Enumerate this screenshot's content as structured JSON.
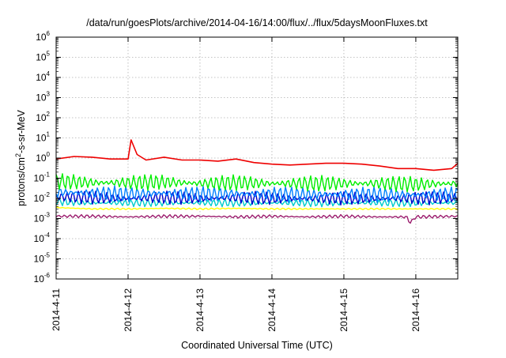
{
  "chart_data": {
    "type": "line",
    "title": "/data/run/goesPlots/archive/2014-04-16/14:00/flux/../flux/5daysMoonFluxes.txt",
    "xlabel": "Coordinated Universal Time (UTC)",
    "ylabel": {
      "prefix": "protons/cm",
      "sup": "2",
      "suffix": "-s-sr-MeV"
    },
    "x_type": "date",
    "xlim": [
      "2014-04-11",
      "2014-04-16 14:00"
    ],
    "x_ticks": [
      "2014-4-11",
      "2014-4-12",
      "2014-4-13",
      "2014-4-14",
      "2014-4-15",
      "2014-4-16"
    ],
    "y_scale": "log",
    "ylim": [
      1e-06,
      1000000.0
    ],
    "y_ticks": [
      {
        "base": "10",
        "exp": "6"
      },
      {
        "base": "10",
        "exp": "5"
      },
      {
        "base": "10",
        "exp": "4"
      },
      {
        "base": "10",
        "exp": "3"
      },
      {
        "base": "10",
        "exp": "2"
      },
      {
        "base": "10",
        "exp": "1"
      },
      {
        "base": "10",
        "exp": "0"
      },
      {
        "base": "10",
        "exp": "-1"
      },
      {
        "base": "10",
        "exp": "-2"
      },
      {
        "base": "10",
        "exp": "-3"
      },
      {
        "base": "10",
        "exp": "-4"
      },
      {
        "base": "10",
        "exp": "-5"
      },
      {
        "base": "10",
        "exp": "-6"
      }
    ],
    "grid": true,
    "legend": "none",
    "series": [
      {
        "color": "#9b1d6e",
        "x": [
          "2014-04-11",
          "2014-04-11 12:00",
          "2014-04-12",
          "2014-04-12 12:00",
          "2014-04-13",
          "2014-04-13 12:00",
          "2014-04-14",
          "2014-04-14 12:00",
          "2014-04-15",
          "2014-04-15 12:00",
          "2014-04-15 21:00",
          "2014-04-15 22:00",
          "2014-04-16",
          "2014-04-16 14:00"
        ],
        "y": [
          0.0013,
          0.0013,
          0.0012,
          0.0013,
          0.0013,
          0.0012,
          0.0013,
          0.0012,
          0.0013,
          0.0012,
          0.0012,
          0.0006,
          0.0012,
          0.0013
        ]
      },
      {
        "color": "#ffff00",
        "x": [
          "2014-04-11",
          "2014-04-11 12:00",
          "2014-04-12",
          "2014-04-12 12:00",
          "2014-04-13",
          "2014-04-13 12:00",
          "2014-04-14",
          "2014-04-14 12:00",
          "2014-04-15",
          "2014-04-15 12:00",
          "2014-04-16",
          "2014-04-16 14:00"
        ],
        "y": [
          0.0035,
          0.003,
          0.003,
          0.0032,
          0.003,
          0.0032,
          0.003,
          0.003,
          0.003,
          0.003,
          0.003,
          0.003
        ]
      },
      {
        "color": "#00cccc",
        "x": [
          "2014-04-11",
          "2014-04-11 12:00",
          "2014-04-12",
          "2014-04-12 12:00",
          "2014-04-13",
          "2014-04-13 12:00",
          "2014-04-14",
          "2014-04-14 12:00",
          "2014-04-15",
          "2014-04-15 12:00",
          "2014-04-16",
          "2014-04-16 14:00"
        ],
        "y": [
          0.007,
          0.006,
          0.006,
          0.006,
          0.006,
          0.006,
          0.006,
          0.006,
          0.006,
          0.006,
          0.006,
          0.006
        ]
      },
      {
        "color": "#0000cc",
        "x": [
          "2014-04-11",
          "2014-04-11 12:00",
          "2014-04-12",
          "2014-04-12 12:00",
          "2014-04-13",
          "2014-04-13 12:00",
          "2014-04-14",
          "2014-04-14 12:00",
          "2014-04-15",
          "2014-04-15 12:00",
          "2014-04-16",
          "2014-04-16 14:00"
        ],
        "y": [
          0.012,
          0.011,
          0.01,
          0.011,
          0.01,
          0.011,
          0.01,
          0.01,
          0.01,
          0.01,
          0.01,
          0.011
        ]
      },
      {
        "color": "#0080ff",
        "x": [
          "2014-04-11",
          "2014-04-11 12:00",
          "2014-04-12",
          "2014-04-12 12:00",
          "2014-04-13",
          "2014-04-13 12:00",
          "2014-04-14",
          "2014-04-14 12:00",
          "2014-04-15",
          "2014-04-15 12:00",
          "2014-04-16",
          "2014-04-16 14:00"
        ],
        "y": [
          0.02,
          0.018,
          0.016,
          0.018,
          0.016,
          0.017,
          0.016,
          0.015,
          0.016,
          0.015,
          0.015,
          0.016
        ]
      },
      {
        "color": "#00ee00",
        "x": [
          "2014-04-11",
          "2014-04-11 12:00",
          "2014-04-12",
          "2014-04-12 12:00",
          "2014-04-13",
          "2014-04-13 12:00",
          "2014-04-14",
          "2014-04-14 12:00",
          "2014-04-15",
          "2014-04-15 12:00",
          "2014-04-16",
          "2014-04-16 14:00"
        ],
        "y": [
          0.07,
          0.06,
          0.06,
          0.065,
          0.055,
          0.06,
          0.055,
          0.055,
          0.055,
          0.055,
          0.05,
          0.055
        ]
      },
      {
        "color": "#ee0000",
        "x": [
          "2014-04-11",
          "2014-04-11 06:00",
          "2014-04-11 12:00",
          "2014-04-11 18:00",
          "2014-04-12",
          "2014-04-12 01:00",
          "2014-04-12 03:00",
          "2014-04-12 06:00",
          "2014-04-12 12:00",
          "2014-04-12 18:00",
          "2014-04-13",
          "2014-04-13 06:00",
          "2014-04-13 12:00",
          "2014-04-13 18:00",
          "2014-04-14",
          "2014-04-14 06:00",
          "2014-04-14 12:00",
          "2014-04-14 18:00",
          "2014-04-15",
          "2014-04-15 06:00",
          "2014-04-15 12:00",
          "2014-04-15 18:00",
          "2014-04-16",
          "2014-04-16 06:00",
          "2014-04-16 12:00",
          "2014-04-16 14:00"
        ],
        "y": [
          0.9,
          1.2,
          1.1,
          0.9,
          0.9,
          8,
          1.5,
          0.8,
          1.1,
          0.8,
          0.8,
          0.7,
          0.9,
          0.6,
          0.5,
          0.45,
          0.5,
          0.55,
          0.55,
          0.5,
          0.4,
          0.3,
          0.3,
          0.25,
          0.3,
          0.55
        ]
      }
    ]
  }
}
